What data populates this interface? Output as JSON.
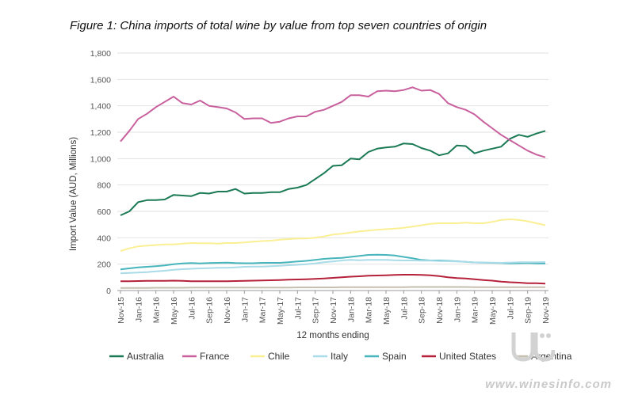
{
  "title": "Figure 1: China imports of total wine by value from top seven countries of origin",
  "watermark": "www.winesinfo.com",
  "chart_data": {
    "type": "line",
    "title": "Figure 1: China imports of total wine by value from top seven countries of origin",
    "xlabel": "12 months ending",
    "ylabel": "Import Value (AUD, Millions)",
    "ylim": [
      0,
      1800
    ],
    "yticks": [
      0,
      200,
      400,
      600,
      800,
      1000,
      1200,
      1400,
      1600,
      1800
    ],
    "ytick_labels": [
      "0",
      "200",
      "400",
      "600",
      "800",
      "1,000",
      "1,200",
      "1,400",
      "1,600",
      "1,800"
    ],
    "xtick_labels": [
      "Nov-15",
      "Jan-16",
      "Mar-16",
      "May-16",
      "Jul-16",
      "Sep-16",
      "Nov-16",
      "Jan-17",
      "Mar-17",
      "May-17",
      "Jul-17",
      "Sep-17",
      "Nov-17",
      "Jan-18",
      "Mar-18",
      "May-18",
      "Jul-18",
      "Sep-18",
      "Nov-18",
      "Jan-19",
      "Mar-19",
      "May-19",
      "Jul-19",
      "Sep-19",
      "Nov-19"
    ],
    "grid": "horizontal",
    "legend": "bottom",
    "x": [
      "Nov-15",
      "Dec-15",
      "Jan-16",
      "Feb-16",
      "Mar-16",
      "Apr-16",
      "May-16",
      "Jun-16",
      "Jul-16",
      "Aug-16",
      "Sep-16",
      "Oct-16",
      "Nov-16",
      "Dec-16",
      "Jan-17",
      "Feb-17",
      "Mar-17",
      "Apr-17",
      "May-17",
      "Jun-17",
      "Jul-17",
      "Aug-17",
      "Sep-17",
      "Oct-17",
      "Nov-17",
      "Dec-17",
      "Jan-18",
      "Feb-18",
      "Mar-18",
      "Apr-18",
      "May-18",
      "Jun-18",
      "Jul-18",
      "Aug-18",
      "Sep-18",
      "Oct-18",
      "Nov-18",
      "Dec-18",
      "Jan-19",
      "Feb-19",
      "Mar-19",
      "Apr-19",
      "May-19",
      "Jun-19",
      "Jul-19",
      "Aug-19",
      "Sep-19",
      "Oct-19",
      "Nov-19"
    ],
    "series": [
      {
        "name": "Australia",
        "color": "#1a7a55",
        "values": [
          570,
          600,
          670,
          685,
          685,
          690,
          725,
          720,
          715,
          740,
          735,
          750,
          750,
          770,
          735,
          740,
          740,
          745,
          745,
          770,
          780,
          800,
          845,
          890,
          945,
          950,
          1000,
          995,
          1050,
          1075,
          1085,
          1090,
          1115,
          1110,
          1080,
          1060,
          1025,
          1040,
          1100,
          1095,
          1040,
          1060,
          1075,
          1090,
          1150,
          1180,
          1165,
          1190,
          1210
        ]
      },
      {
        "name": "France",
        "color": "#c9609e",
        "values": [
          1130,
          1210,
          1300,
          1340,
          1390,
          1430,
          1470,
          1420,
          1410,
          1440,
          1400,
          1390,
          1380,
          1350,
          1300,
          1305,
          1305,
          1270,
          1280,
          1305,
          1320,
          1320,
          1355,
          1370,
          1400,
          1430,
          1480,
          1480,
          1470,
          1510,
          1515,
          1510,
          1520,
          1540,
          1515,
          1520,
          1490,
          1420,
          1390,
          1370,
          1335,
          1280,
          1230,
          1180,
          1140,
          1100,
          1060,
          1030,
          1010
        ]
      },
      {
        "name": "Chile",
        "color": "#fbef94",
        "values": [
          300,
          320,
          335,
          340,
          345,
          350,
          350,
          355,
          360,
          358,
          358,
          356,
          360,
          360,
          365,
          370,
          375,
          378,
          385,
          390,
          395,
          395,
          400,
          410,
          425,
          430,
          440,
          448,
          455,
          460,
          465,
          470,
          475,
          485,
          495,
          505,
          510,
          510,
          510,
          515,
          510,
          510,
          520,
          535,
          540,
          535,
          525,
          510,
          495
        ]
      },
      {
        "name": "Italy",
        "color": "#a9dce8",
        "values": [
          130,
          133,
          137,
          140,
          145,
          150,
          158,
          162,
          165,
          168,
          170,
          172,
          172,
          176,
          180,
          182,
          182,
          185,
          188,
          192,
          195,
          200,
          205,
          215,
          220,
          228,
          232,
          230,
          232,
          232,
          232,
          230,
          228,
          228,
          227,
          226,
          224,
          222,
          220,
          218,
          213,
          212,
          212,
          210,
          212,
          214,
          214,
          215,
          216
        ]
      },
      {
        "name": "Spain",
        "color": "#46b5bc",
        "values": [
          160,
          168,
          175,
          180,
          185,
          190,
          200,
          205,
          208,
          206,
          208,
          210,
          212,
          208,
          207,
          207,
          210,
          210,
          210,
          215,
          220,
          225,
          232,
          240,
          245,
          248,
          255,
          262,
          270,
          272,
          270,
          265,
          255,
          245,
          232,
          228,
          228,
          225,
          222,
          218,
          213,
          212,
          210,
          208,
          205,
          207,
          208,
          206,
          205
        ]
      },
      {
        "name": "United States",
        "color": "#b5223a",
        "values": [
          70,
          70,
          72,
          73,
          73,
          74,
          75,
          73,
          70,
          70,
          70,
          70,
          70,
          72,
          74,
          75,
          77,
          78,
          80,
          82,
          84,
          86,
          88,
          92,
          96,
          100,
          105,
          108,
          112,
          114,
          116,
          118,
          120,
          120,
          118,
          115,
          110,
          100,
          95,
          92,
          85,
          80,
          75,
          68,
          63,
          60,
          56,
          55,
          53
        ]
      },
      {
        "name": "Argentina",
        "color": "#c5bfae",
        "values": [
          20,
          20,
          20,
          20,
          21,
          21,
          21,
          21,
          22,
          22,
          22,
          22,
          22,
          22,
          22,
          23,
          23,
          23,
          23,
          23,
          24,
          24,
          24,
          24,
          24,
          25,
          25,
          25,
          26,
          26,
          26,
          26,
          26,
          27,
          27,
          27,
          27,
          27,
          27,
          27,
          26,
          26,
          26,
          26,
          26,
          26,
          26,
          26,
          26
        ]
      }
    ]
  }
}
